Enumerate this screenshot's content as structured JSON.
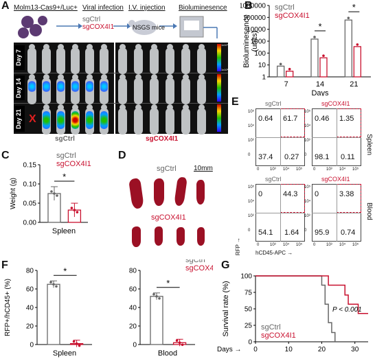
{
  "panel_labels": {
    "A": "A",
    "B": "B",
    "C": "C",
    "D": "D",
    "E": "E",
    "F": "F",
    "G": "G"
  },
  "panel_a": {
    "steps": [
      "Molm13-Cas9+/Luc+",
      "Viral infection",
      "I.V. injection",
      "Bioluminesence"
    ],
    "infection_groups": [
      "sgCtrl",
      "sgCOX4I1"
    ],
    "host": "NSGS mice",
    "days": [
      "Day 7",
      "Day 14",
      "Day 21"
    ],
    "death_mark": "X",
    "group_labels": [
      "sgCtrl",
      "sgCOX4I1"
    ],
    "colorbar_ticks": [
      "1x10⁷",
      "5x10⁶",
      "1x10⁶"
    ]
  },
  "chart_data": [
    {
      "panel": "B",
      "type": "bar",
      "categories": [
        "7",
        "14",
        "21"
      ],
      "xlabel": "Days",
      "ylabel": "Bioluminesence (units)",
      "yscale": "log",
      "ylim": [
        1,
        1000000
      ],
      "yticks": [
        "1",
        "10",
        "100",
        "1000",
        "10000",
        "100000",
        "1000000"
      ],
      "series": [
        {
          "name": "sgCtrl",
          "color": "#666666",
          "values": [
            8,
            1500,
            60000
          ]
        },
        {
          "name": "sgCOX4I1",
          "color": "#c8102e",
          "values": [
            3,
            40,
            350
          ]
        }
      ],
      "significance": [
        "*",
        "*"
      ]
    },
    {
      "panel": "C",
      "type": "bar",
      "categories": [
        "Spleen"
      ],
      "ylabel": "Weight (g)",
      "ylim": [
        0,
        0.15
      ],
      "yticks": [
        "0.00",
        "0.05",
        "0.10",
        "0.15"
      ],
      "series": [
        {
          "name": "sgCtrl",
          "color": "#666666",
          "values": [
            0.075
          ]
        },
        {
          "name": "sgCOX4I1",
          "color": "#c8102e",
          "values": [
            0.032
          ]
        }
      ],
      "significance": [
        "*"
      ]
    },
    {
      "panel": "F-spleen",
      "type": "bar",
      "categories": [
        "Spleen"
      ],
      "ylabel": "RFP+/hCD45+ (%)",
      "ylim": [
        0,
        80
      ],
      "yticks": [
        "0",
        "20",
        "40",
        "60",
        "80"
      ],
      "series": [
        {
          "name": "sgCtrl",
          "color": "#666666",
          "values": [
            65
          ]
        },
        {
          "name": "sgCOX4I1",
          "color": "#c8102e",
          "values": [
            1
          ]
        }
      ],
      "significance": [
        "*"
      ]
    },
    {
      "panel": "F-blood",
      "type": "bar",
      "categories": [
        "Blood"
      ],
      "ylim": [
        0,
        80
      ],
      "yticks": [
        "0",
        "20",
        "40",
        "60",
        "80"
      ],
      "series": [
        {
          "name": "sgCtrl",
          "color": "#666666",
          "values": [
            52
          ]
        },
        {
          "name": "sgCOX4I1",
          "color": "#c8102e",
          "values": [
            2
          ]
        }
      ],
      "significance": [
        "*"
      ]
    },
    {
      "panel": "G",
      "type": "line",
      "xlabel": "Days",
      "ylabel": "Survival rate (%)",
      "xlim": [
        0,
        34
      ],
      "ylim": [
        0,
        100
      ],
      "xticks": [
        "0",
        "10",
        "20",
        "30"
      ],
      "yticks": [
        "0",
        "25",
        "50",
        "75",
        "100"
      ],
      "annotation": "P < 0.001",
      "series": [
        {
          "name": "sgCtrl",
          "color": "#666666",
          "x": [
            0,
            20,
            20,
            21,
            21,
            22,
            22,
            23,
            23,
            24,
            24
          ],
          "y": [
            100,
            100,
            86,
            86,
            57,
            57,
            29,
            29,
            14,
            14,
            0
          ]
        },
        {
          "name": "sgCOX4I1",
          "color": "#c8102e",
          "x": [
            0,
            22,
            22,
            27,
            27,
            28,
            28,
            31,
            31,
            33,
            33,
            34
          ],
          "y": [
            100,
            100,
            86,
            86,
            71,
            71,
            57,
            57,
            43,
            43,
            43,
            43
          ]
        }
      ]
    }
  ],
  "panel_d": {
    "labels": [
      "sgCtrl",
      "sgCOX4I1"
    ],
    "scale": "10mm"
  },
  "panel_e": {
    "quadrants": [
      {
        "tissue": "Spleen",
        "group": "sgCtrl",
        "UL": "0.64",
        "UR": "61.7",
        "LL": "37.4",
        "LR": "0.27"
      },
      {
        "tissue": "Spleen",
        "group": "sgCOX4I1",
        "UL": "0.46",
        "UR": "1.35",
        "LL": "98.1",
        "LR": "0.11"
      },
      {
        "tissue": "Blood",
        "group": "sgCtrl",
        "UL": "0",
        "UR": "44.3",
        "LL": "54.1",
        "LR": "1.64"
      },
      {
        "tissue": "Blood",
        "group": "sgCOX4I1",
        "UL": "0",
        "UR": "3.38",
        "LL": "95.9",
        "LR": "0.74"
      }
    ],
    "tissues": [
      "Spleen",
      "Blood"
    ],
    "x_axis": "hCD45-APC →",
    "y_axis": "RFP →",
    "axis_ticks": [
      "0",
      "10³",
      "10⁴",
      "10⁵"
    ]
  }
}
